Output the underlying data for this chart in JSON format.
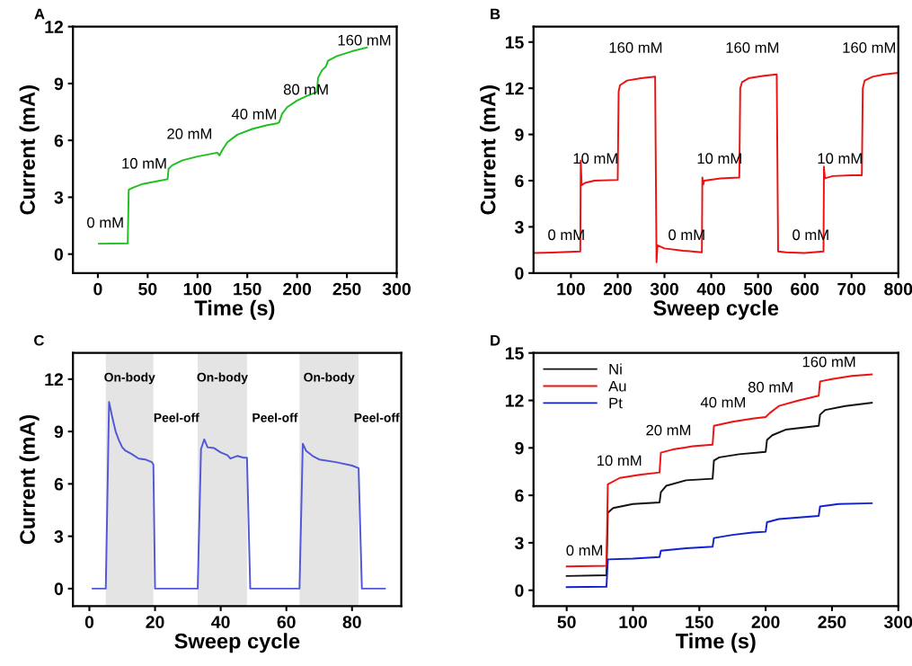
{
  "chart_data": [
    {
      "type": "line",
      "title": "A",
      "xlabel": "Time (s)",
      "ylabel": "Current (mA)",
      "xlim": [
        -25,
        300
      ],
      "xticks": [
        0,
        50,
        100,
        150,
        200,
        250,
        300
      ],
      "ylim": [
        -1,
        12
      ],
      "yticks": [
        0,
        3,
        6,
        9,
        12
      ],
      "grid": false,
      "legend": false,
      "series": [
        {
          "color": "#1fbf1f",
          "x": [
            1,
            30,
            31,
            35,
            45,
            60,
            70,
            71,
            75,
            85,
            100,
            120,
            122,
            125,
            130,
            140,
            155,
            170,
            180,
            182,
            185,
            190,
            200,
            210,
            220,
            221,
            225,
            229,
            231,
            240,
            255,
            270
          ],
          "values": [
            0.55,
            0.57,
            3.4,
            3.5,
            3.7,
            3.85,
            3.95,
            4.5,
            4.7,
            4.95,
            5.15,
            5.35,
            5.2,
            5.5,
            5.9,
            6.3,
            6.6,
            6.8,
            6.9,
            6.95,
            7.4,
            7.75,
            8.1,
            8.35,
            8.55,
            9.3,
            9.7,
            9.9,
            10.2,
            10.45,
            10.7,
            10.9
          ]
        }
      ],
      "annotations": [
        "0 mM",
        "10 mM",
        "20 mM",
        "40 mM",
        "80 mM",
        "160 mM"
      ]
    },
    {
      "type": "line",
      "title": "B",
      "xlabel": "Sweep cycle",
      "ylabel": "Current (mA)",
      "xlim": [
        20,
        800
      ],
      "xticks": [
        100,
        200,
        300,
        400,
        500,
        600,
        700,
        800
      ],
      "ylim": [
        0,
        16
      ],
      "yticks": [
        0,
        3,
        6,
        9,
        12,
        15
      ],
      "grid": false,
      "legend": false,
      "series": [
        {
          "color": "#ee1111",
          "x": [
            20,
            60,
            120,
            121,
            123,
            130,
            150,
            200,
            202,
            205,
            220,
            250,
            280,
            283,
            285,
            300,
            340,
            380,
            381,
            383,
            385,
            420,
            460,
            462,
            466,
            480,
            510,
            540,
            543,
            560,
            600,
            640,
            641,
            643,
            660,
            700,
            722,
            724,
            728,
            745,
            770,
            800
          ],
          "values": [
            1.3,
            1.33,
            1.4,
            7.3,
            5.7,
            5.85,
            6.0,
            6.05,
            11.8,
            12.2,
            12.5,
            12.65,
            12.75,
            0.7,
            1.8,
            1.6,
            1.45,
            1.35,
            6.2,
            5.75,
            6.0,
            6.15,
            6.2,
            12.0,
            12.4,
            12.65,
            12.8,
            12.9,
            1.4,
            1.35,
            1.3,
            1.4,
            6.9,
            6.15,
            6.3,
            6.35,
            6.35,
            12.0,
            12.5,
            12.75,
            12.9,
            13.0
          ]
        }
      ],
      "annotations": [
        "0 mM",
        "0 mM",
        "0 mM",
        "10 mM",
        "10 mM",
        "10 mM",
        "160 mM",
        "160 mM",
        "160 mM"
      ]
    },
    {
      "type": "line",
      "title": "C",
      "xlabel": "Sweep cycle",
      "ylabel": "Current (mA)",
      "xlim": [
        -5,
        95
      ],
      "xticks": [
        0,
        20,
        40,
        60,
        80
      ],
      "ylim": [
        -1,
        13.5
      ],
      "yticks": [
        0,
        3,
        6,
        9,
        12
      ],
      "grid": false,
      "legend": false,
      "bands": [
        {
          "axis": "x",
          "from": 5,
          "to": 19.5,
          "label": "On-body",
          "color": "#e4e4e4"
        },
        {
          "axis": "x",
          "from": 33,
          "to": 48,
          "label": "On-body",
          "color": "#e4e4e4"
        },
        {
          "axis": "x",
          "from": 64,
          "to": 82,
          "label": "On-body",
          "color": "#e4e4e4"
        }
      ],
      "series": [
        {
          "color": "#5058d8",
          "x": [
            1,
            5,
            6,
            7,
            8,
            9,
            10,
            11,
            13,
            15,
            17,
            19,
            19.5,
            20,
            33,
            34,
            35,
            36,
            38,
            40,
            42,
            43,
            45,
            47,
            48,
            49,
            64,
            65,
            66,
            68,
            70,
            75,
            80,
            82,
            83,
            90
          ],
          "values": [
            0,
            0,
            10.7,
            9.8,
            9.0,
            8.5,
            8.1,
            7.9,
            7.7,
            7.45,
            7.4,
            7.25,
            7.1,
            0,
            0,
            8.0,
            8.55,
            8.1,
            8.05,
            7.8,
            7.65,
            7.45,
            7.6,
            7.5,
            7.5,
            0,
            0,
            8.3,
            7.9,
            7.6,
            7.4,
            7.25,
            7.05,
            6.9,
            0,
            0
          ]
        }
      ],
      "annotations": [
        "Peel-off",
        "Peel-off",
        "Peel-off"
      ]
    },
    {
      "type": "line",
      "title": "D",
      "xlabel": "Time (s)",
      "xlim": [
        25,
        300
      ],
      "xticks": [
        50,
        100,
        150,
        200,
        250,
        300
      ],
      "ylim": [
        -1,
        15
      ],
      "yticks": [
        0,
        3,
        6,
        9,
        12,
        15
      ],
      "grid": false,
      "legend": "top left",
      "series": [
        {
          "name": "Ni",
          "color": "#111111",
          "x": [
            50,
            80,
            81,
            85,
            100,
            120,
            121,
            125,
            140,
            160,
            161,
            165,
            180,
            200,
            201,
            205,
            215,
            240,
            241,
            245,
            260,
            280
          ],
          "values": [
            0.9,
            0.95,
            4.9,
            5.2,
            5.45,
            5.55,
            6.2,
            6.6,
            6.95,
            7.05,
            8.2,
            8.4,
            8.6,
            8.75,
            9.5,
            9.8,
            10.15,
            10.4,
            11.1,
            11.4,
            11.65,
            11.85
          ]
        },
        {
          "name": "Au",
          "color": "#ee1111",
          "x": [
            50,
            80,
            81,
            90,
            105,
            120,
            121,
            130,
            145,
            160,
            161,
            175,
            190,
            200,
            203,
            210,
            225,
            240,
            241,
            250,
            265,
            280
          ],
          "values": [
            1.5,
            1.55,
            6.7,
            7.1,
            7.3,
            7.45,
            8.7,
            8.9,
            9.1,
            9.2,
            10.4,
            10.65,
            10.85,
            10.95,
            11.2,
            11.65,
            12.0,
            12.3,
            13.2,
            13.35,
            13.55,
            13.65
          ]
        },
        {
          "name": "Pt",
          "color": "#1122cc",
          "x": [
            50,
            80,
            81,
            100,
            120,
            121,
            140,
            160,
            161,
            175,
            190,
            200,
            201,
            210,
            240,
            241,
            255,
            280
          ],
          "values": [
            0.2,
            0.22,
            1.95,
            2.0,
            2.1,
            2.5,
            2.65,
            2.75,
            3.3,
            3.5,
            3.65,
            3.7,
            4.3,
            4.5,
            4.7,
            5.3,
            5.45,
            5.5
          ]
        }
      ],
      "annotations": [
        "0 mM",
        "10 mM",
        "20 mM",
        "40 mM",
        "80 mM",
        "160 mM"
      ]
    }
  ]
}
